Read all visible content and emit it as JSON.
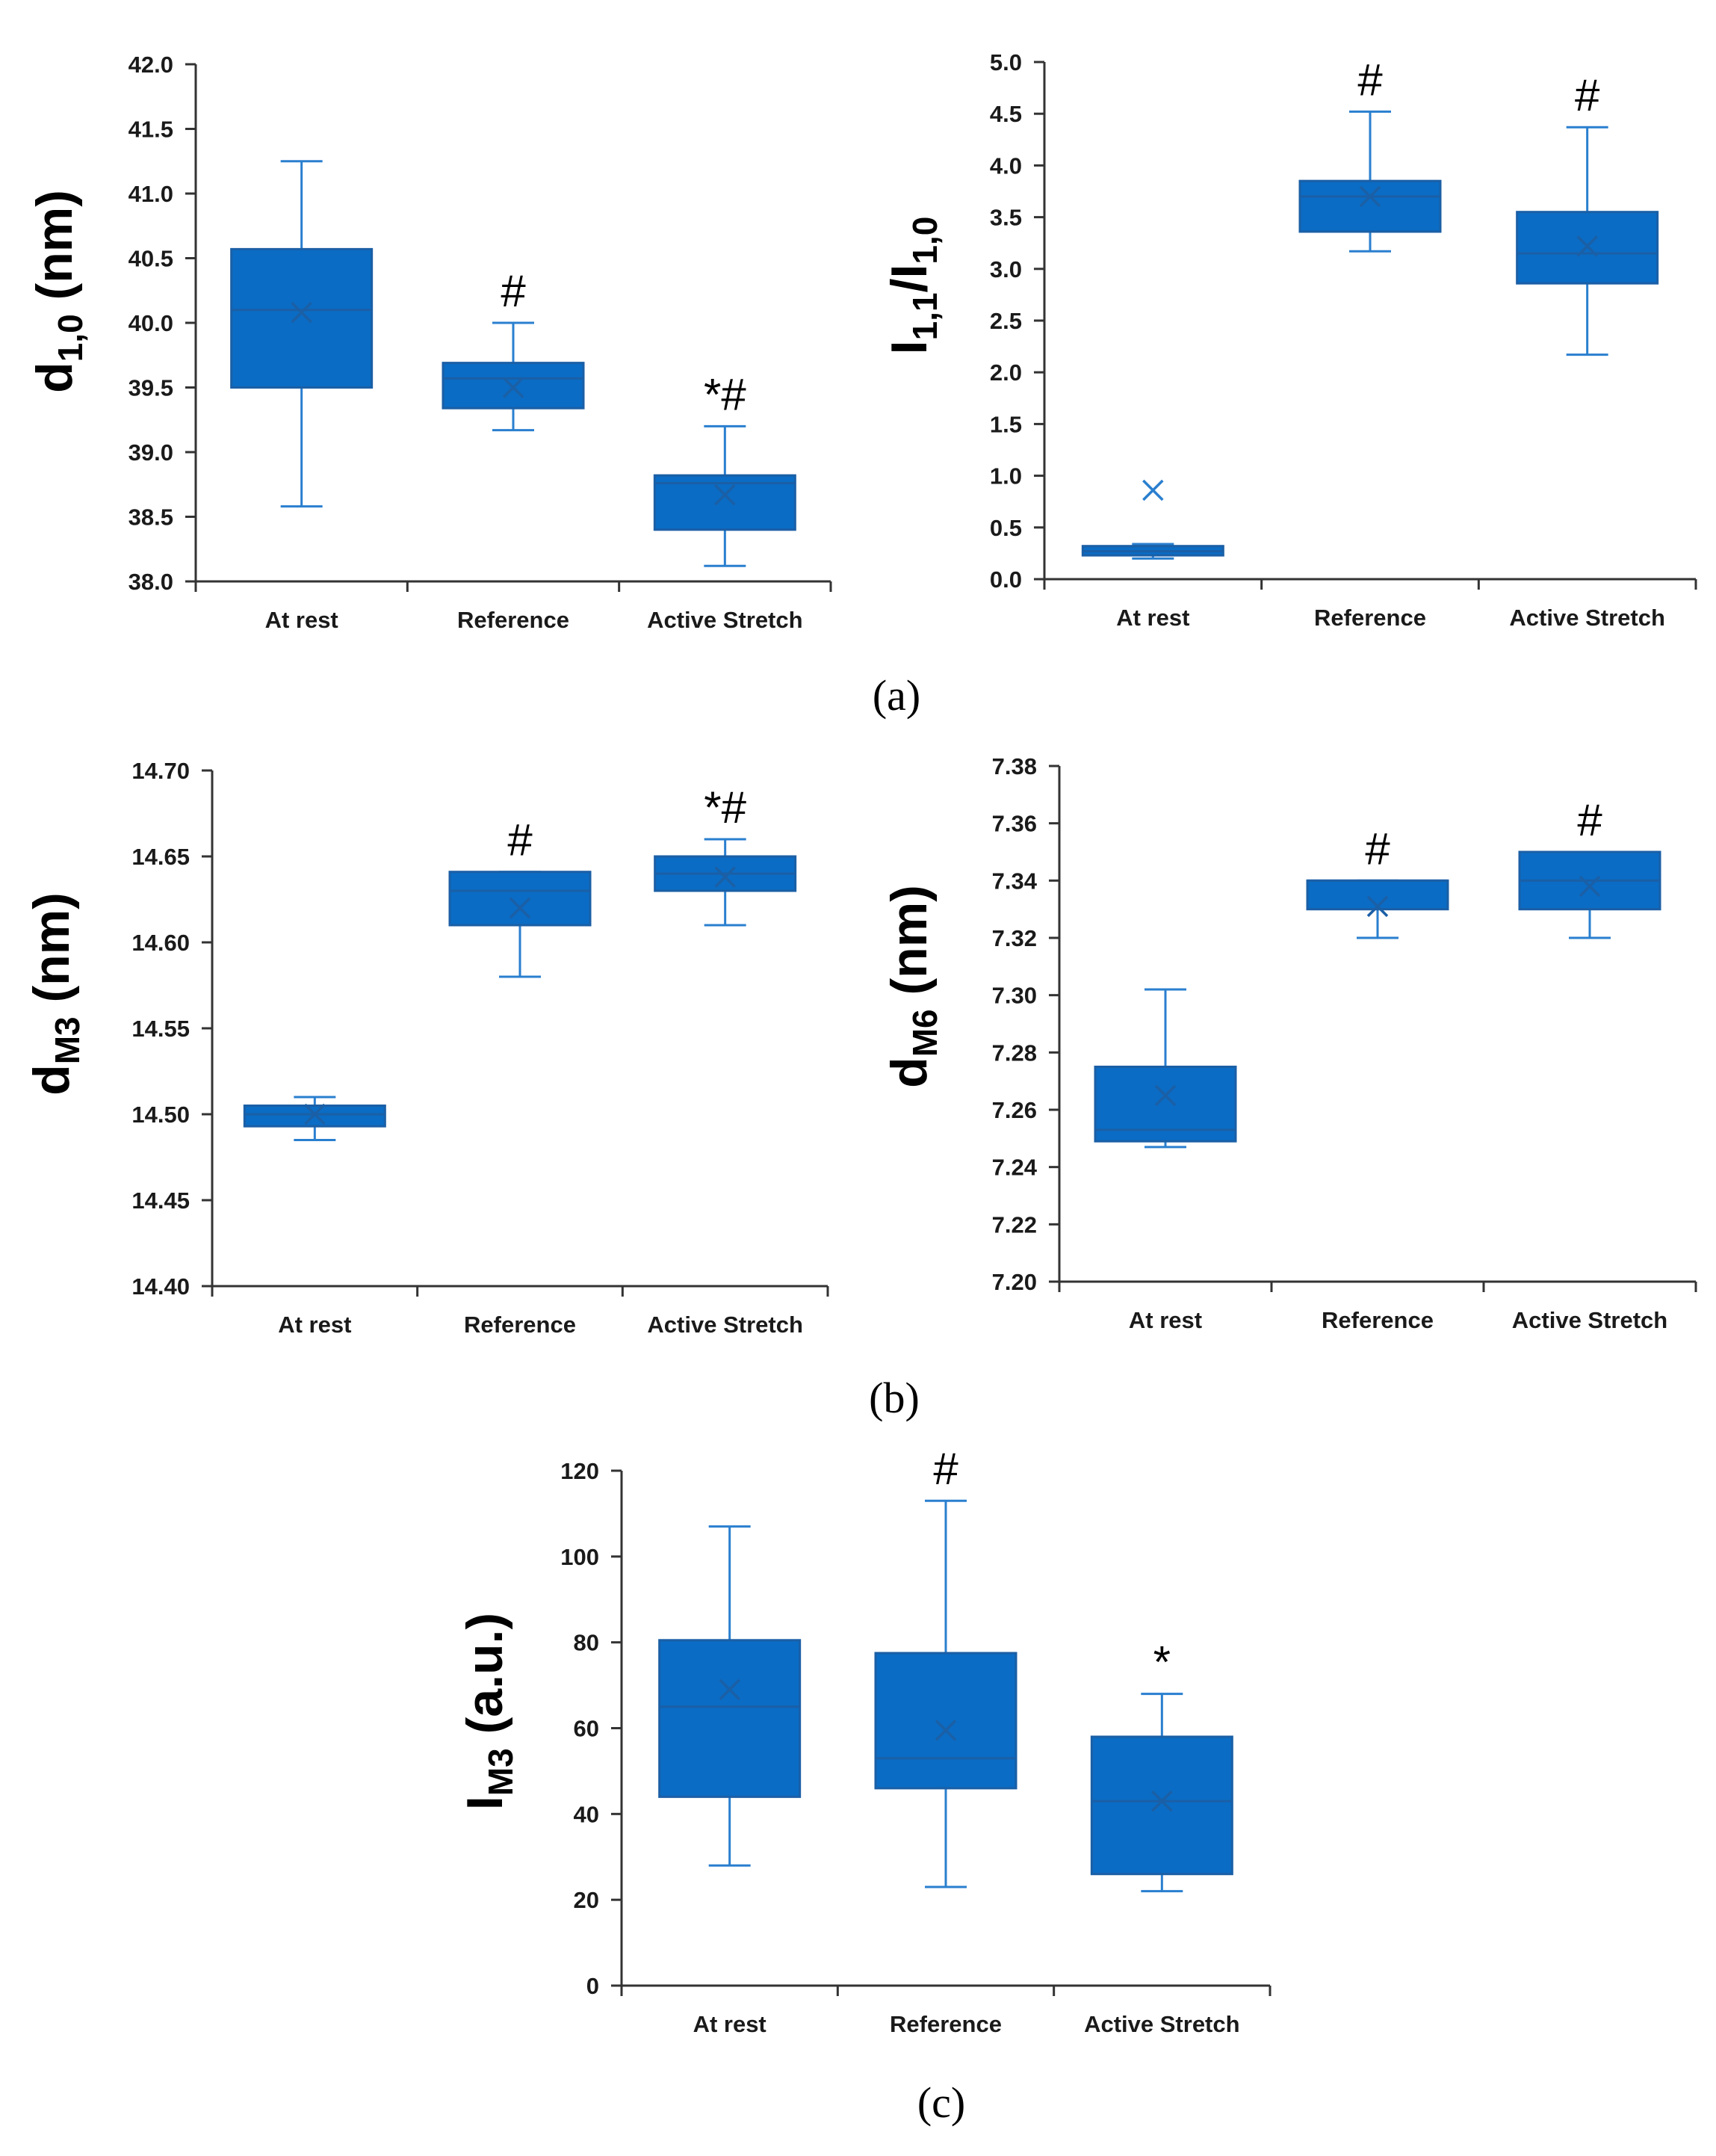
{
  "colors": {
    "box_fill": "#0a6cc4",
    "box_edge": "#1b5fa6",
    "whisker": "#2a7fcf",
    "axis": "#333333"
  },
  "panel_labels": [
    "(a)",
    "(b)",
    "(c)"
  ],
  "chart_data": [
    {
      "id": "d10",
      "type": "box",
      "ylabel_main": "d",
      "ylabel_sub": "1,0",
      "ylabel_suffix": " (nm)",
      "ylim": [
        38.0,
        42.0
      ],
      "yticks": [
        "38.0",
        "38.5",
        "39.0",
        "39.5",
        "40.0",
        "40.5",
        "41.0",
        "41.5",
        "42.0"
      ],
      "categories": [
        "At rest",
        "Reference",
        "Active Stretch"
      ],
      "boxes": [
        {
          "min": 38.58,
          "q1": 39.5,
          "median": 40.1,
          "q3": 40.57,
          "max": 41.25,
          "mean": 40.08,
          "sig": ""
        },
        {
          "min": 39.17,
          "q1": 39.34,
          "median": 39.57,
          "q3": 39.69,
          "max": 40.0,
          "mean": 39.5,
          "sig": "#"
        },
        {
          "min": 38.12,
          "q1": 38.4,
          "median": 38.76,
          "q3": 38.82,
          "max": 39.2,
          "mean": 38.67,
          "sig": "*#"
        }
      ]
    },
    {
      "id": "i11i10",
      "type": "box",
      "ylabel_main": "I",
      "ylabel_sub": "1,1",
      "ylabel_mid": "/I",
      "ylabel_sub2": "1,0",
      "ylim": [
        0.0,
        5.0
      ],
      "yticks": [
        "0.0",
        "0.5",
        "1.0",
        "1.5",
        "2.0",
        "2.5",
        "3.0",
        "3.5",
        "4.0",
        "4.5",
        "5.0"
      ],
      "categories": [
        "At rest",
        "Reference",
        "Active Stretch"
      ],
      "boxes": [
        {
          "min": 0.2,
          "q1": 0.23,
          "median": 0.27,
          "q3": 0.32,
          "max": 0.34,
          "mean": 0.86,
          "sig": ""
        },
        {
          "min": 3.17,
          "q1": 3.36,
          "median": 3.7,
          "q3": 3.85,
          "max": 4.52,
          "mean": 3.7,
          "sig": "#"
        },
        {
          "min": 2.17,
          "q1": 2.86,
          "median": 3.15,
          "q3": 3.55,
          "max": 4.37,
          "mean": 3.22,
          "sig": "#"
        }
      ]
    },
    {
      "id": "dm3",
      "type": "box",
      "ylabel_main": "d",
      "ylabel_sub": "M3",
      "ylabel_suffix": " (nm)",
      "ylim": [
        14.4,
        14.7
      ],
      "yticks": [
        "14.40",
        "14.45",
        "14.50",
        "14.55",
        "14.60",
        "14.65",
        "14.70"
      ],
      "categories": [
        "At rest",
        "Reference",
        "Active Stretch"
      ],
      "boxes": [
        {
          "min": 14.485,
          "q1": 14.493,
          "median": 14.5,
          "q3": 14.505,
          "max": 14.51,
          "mean": 14.5,
          "sig": ""
        },
        {
          "min": 14.58,
          "q1": 14.61,
          "median": 14.63,
          "q3": 14.641,
          "max": 14.641,
          "mean": 14.62,
          "sig": "#"
        },
        {
          "min": 14.61,
          "q1": 14.63,
          "median": 14.64,
          "q3": 14.65,
          "max": 14.66,
          "mean": 14.638,
          "sig": "*#"
        }
      ]
    },
    {
      "id": "dm6",
      "type": "box",
      "ylabel_main": "d",
      "ylabel_sub": "M6",
      "ylabel_suffix": " (nm)",
      "ylim": [
        7.2,
        7.38
      ],
      "yticks": [
        "7.20",
        "7.22",
        "7.24",
        "7.26",
        "7.28",
        "7.30",
        "7.32",
        "7.34",
        "7.36",
        "7.38"
      ],
      "categories": [
        "At rest",
        "Reference",
        "Active Stretch"
      ],
      "boxes": [
        {
          "min": 7.247,
          "q1": 7.249,
          "median": 7.253,
          "q3": 7.275,
          "max": 7.302,
          "mean": 7.265,
          "sig": ""
        },
        {
          "min": 7.32,
          "q1": 7.33,
          "median": 7.34,
          "q3": 7.34,
          "max": 7.34,
          "mean": 7.331,
          "sig": "#"
        },
        {
          "min": 7.32,
          "q1": 7.33,
          "median": 7.34,
          "q3": 7.35,
          "max": 7.35,
          "mean": 7.338,
          "sig": "#"
        }
      ]
    },
    {
      "id": "im3",
      "type": "box",
      "ylabel_main": "I",
      "ylabel_sub": "M3",
      "ylabel_suffix": " (a.u.)",
      "ylim": [
        0,
        120
      ],
      "yticks": [
        "0",
        "20",
        "40",
        "60",
        "80",
        "100",
        "120"
      ],
      "categories": [
        "At rest",
        "Reference",
        "Active Stretch"
      ],
      "boxes": [
        {
          "min": 28,
          "q1": 44,
          "median": 65,
          "q3": 80.5,
          "max": 107,
          "mean": 69,
          "sig": ""
        },
        {
          "min": 23,
          "q1": 46,
          "median": 53,
          "q3": 77.5,
          "max": 113,
          "mean": 59.5,
          "sig": "#"
        },
        {
          "min": 22,
          "q1": 26,
          "median": 43,
          "q3": 58,
          "max": 68,
          "mean": 43,
          "sig": "*"
        }
      ]
    }
  ]
}
